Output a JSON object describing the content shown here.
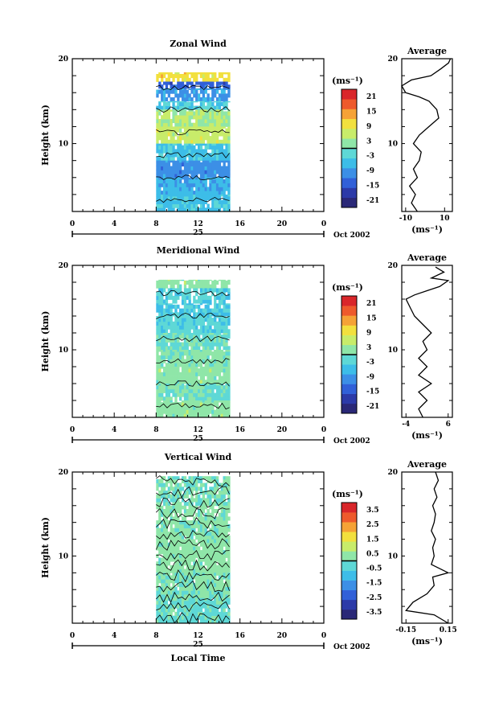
{
  "chart_data": [
    {
      "type": "heatmap",
      "title": "Zonal Wind",
      "ylabel": "Height (km)",
      "y_ticks": [
        "20",
        "10"
      ],
      "ylim": [
        2,
        20
      ],
      "x_ticks": [
        "0",
        "4",
        "8",
        "12",
        "16",
        "20",
        "0"
      ],
      "xlim": [
        0,
        24
      ],
      "date_day": "25",
      "date_month": "Oct 2002",
      "data_x_range": [
        8,
        15
      ],
      "data_y_range": [
        2,
        18
      ],
      "colorbar": {
        "unit": "(ms⁻¹)",
        "labels": [
          "21",
          "15",
          "9",
          "3",
          "-3",
          "-9",
          "-15",
          "-21"
        ],
        "range": [
          -24,
          24
        ],
        "zero_line": true
      },
      "bands": [
        {
          "y0": 17.3,
          "y1": 18.4,
          "value": 10
        },
        {
          "y0": 16.5,
          "y1": 17.3,
          "value": -14
        },
        {
          "y0": 15.0,
          "y1": 16.5,
          "value": -9
        },
        {
          "y0": 14.0,
          "y1": 15.0,
          "value": -3
        },
        {
          "y0": 12.0,
          "y1": 14.0,
          "value": 4
        },
        {
          "y0": 10.0,
          "y1": 12.0,
          "value": 6
        },
        {
          "y0": 8.0,
          "y1": 10.0,
          "value": -5
        },
        {
          "y0": 6.0,
          "y1": 8.0,
          "value": -10
        },
        {
          "y0": 4.0,
          "y1": 6.0,
          "value": -7
        },
        {
          "y0": 2.0,
          "y1": 4.0,
          "value": -5
        }
      ],
      "profile": {
        "title": "Average",
        "y_ticks": [
          "20",
          "10"
        ],
        "x_ticks": [
          "-10",
          "10"
        ],
        "xlim": [
          -12,
          14
        ],
        "xlabel": "(ms⁻¹)",
        "points": [
          [
            -4,
            2.0
          ],
          [
            -7,
            3.0
          ],
          [
            -5,
            4.0
          ],
          [
            -8,
            5.0
          ],
          [
            -4,
            6.0
          ],
          [
            -6,
            7.0
          ],
          [
            -3,
            8.0
          ],
          [
            -2,
            9.0
          ],
          [
            -6,
            10.0
          ],
          [
            -3,
            11.0
          ],
          [
            2,
            12.0
          ],
          [
            7,
            13.0
          ],
          [
            6,
            14.0
          ],
          [
            2,
            15.0
          ],
          [
            -3,
            15.5
          ],
          [
            -10,
            16.0
          ],
          [
            -12,
            16.8
          ],
          [
            -7,
            17.5
          ],
          [
            3,
            18.0
          ],
          [
            8,
            18.8
          ],
          [
            12,
            19.5
          ],
          [
            13,
            20.0
          ]
        ]
      }
    },
    {
      "type": "heatmap",
      "title": "Meridional Wind",
      "ylabel": "Height (km)",
      "y_ticks": [
        "20",
        "10"
      ],
      "ylim": [
        2,
        20
      ],
      "x_ticks": [
        "0",
        "4",
        "8",
        "12",
        "16",
        "20",
        "0"
      ],
      "xlim": [
        0,
        24
      ],
      "date_day": "25",
      "date_month": "Oct 2002",
      "data_x_range": [
        8,
        15
      ],
      "data_y_range": [
        2,
        18
      ],
      "colorbar": {
        "unit": "(ms⁻¹)",
        "labels": [
          "21",
          "15",
          "9",
          "3",
          "-3",
          "-9",
          "-15",
          "-21"
        ],
        "range": [
          -24,
          24
        ],
        "zero_line": true
      },
      "bands": [
        {
          "y0": 17.3,
          "y1": 18.3,
          "value": 2
        },
        {
          "y0": 15.5,
          "y1": 17.3,
          "value": -3
        },
        {
          "y0": 14.0,
          "y1": 15.5,
          "value": -4
        },
        {
          "y0": 12.0,
          "y1": 14.0,
          "value": -3
        },
        {
          "y0": 10.0,
          "y1": 12.0,
          "value": -1
        },
        {
          "y0": 8.0,
          "y1": 10.0,
          "value": 1
        },
        {
          "y0": 6.0,
          "y1": 8.0,
          "value": 2
        },
        {
          "y0": 4.0,
          "y1": 6.0,
          "value": 0
        },
        {
          "y0": 2.0,
          "y1": 4.0,
          "value": 2
        }
      ],
      "profile": {
        "title": "Average",
        "y_ticks": [
          "20",
          "10"
        ],
        "x_ticks": [
          "-4",
          "6"
        ],
        "xlim": [
          -5,
          7
        ],
        "xlabel": "(ms⁻¹)",
        "points": [
          [
            0,
            2.0
          ],
          [
            -1,
            3.0
          ],
          [
            1,
            4.0
          ],
          [
            -1,
            5.0
          ],
          [
            2,
            6.0
          ],
          [
            -1,
            7.0
          ],
          [
            1,
            8.0
          ],
          [
            -1,
            9.0
          ],
          [
            1,
            10.0
          ],
          [
            0,
            11.0
          ],
          [
            2,
            12.0
          ],
          [
            0,
            13.0
          ],
          [
            -2,
            14.0
          ],
          [
            -3,
            15.0
          ],
          [
            -4,
            16.0
          ],
          [
            -2,
            16.5
          ],
          [
            1,
            17.0
          ],
          [
            4,
            17.5
          ],
          [
            6,
            18.2
          ],
          [
            2,
            18.5
          ],
          [
            5,
            19.2
          ],
          [
            3,
            19.8
          ]
        ]
      }
    },
    {
      "type": "heatmap",
      "title": "Vertical Wind",
      "ylabel": "Height (km)",
      "xlabel": "Local Time",
      "y_ticks": [
        "20",
        "10"
      ],
      "ylim": [
        2,
        20
      ],
      "x_ticks": [
        "0",
        "4",
        "8",
        "12",
        "16",
        "20",
        "0"
      ],
      "xlim": [
        0,
        24
      ],
      "date_day": "25",
      "date_month": "Oct 2002",
      "data_x_range": [
        8,
        15
      ],
      "data_y_range": [
        2,
        19.5
      ],
      "colorbar": {
        "unit": "(ms⁻¹)",
        "labels": [
          "3.5",
          "2.5",
          "1.5",
          "0.5",
          "-0.5",
          "-1.5",
          "-2.5",
          "-3.5"
        ],
        "range": [
          -4,
          4
        ],
        "zero_line": true
      },
      "bands": [
        {
          "y0": 16.0,
          "y1": 19.5,
          "value": 0.0
        },
        {
          "y0": 12.0,
          "y1": 16.0,
          "value": 0.2
        },
        {
          "y0": 8.0,
          "y1": 12.0,
          "value": 0.3
        },
        {
          "y0": 5.0,
          "y1": 8.0,
          "value": 0.1
        },
        {
          "y0": 2.0,
          "y1": 5.0,
          "value": -0.2
        }
      ],
      "profile": {
        "title": "Average",
        "y_ticks": [
          "20",
          "10"
        ],
        "x_ticks": [
          "-0.15",
          "0.15"
        ],
        "xlim": [
          -0.18,
          0.18
        ],
        "xlabel": "(ms⁻¹)",
        "points": [
          [
            0.15,
            2.0
          ],
          [
            0.05,
            3.0
          ],
          [
            -0.15,
            3.5
          ],
          [
            -0.1,
            4.5
          ],
          [
            0.0,
            5.5
          ],
          [
            0.05,
            6.5
          ],
          [
            0.04,
            7.5
          ],
          [
            0.15,
            8.0
          ],
          [
            0.03,
            9.0
          ],
          [
            0.05,
            10.0
          ],
          [
            0.04,
            11.0
          ],
          [
            0.06,
            12.0
          ],
          [
            0.03,
            13.0
          ],
          [
            0.05,
            14.0
          ],
          [
            0.06,
            15.0
          ],
          [
            0.04,
            16.0
          ],
          [
            0.07,
            17.0
          ],
          [
            0.05,
            18.0
          ],
          [
            0.08,
            19.0
          ],
          [
            0.06,
            20.0
          ]
        ]
      }
    }
  ]
}
